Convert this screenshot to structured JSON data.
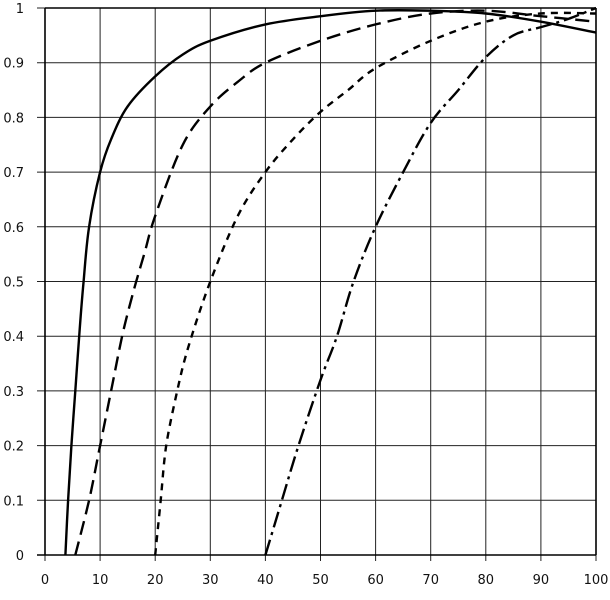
{
  "chart_data": {
    "type": "line",
    "title": "",
    "xlabel": "",
    "ylabel": "",
    "xlim": [
      0,
      100
    ],
    "ylim": [
      0,
      1
    ],
    "grid": true,
    "legend": null,
    "x_ticks": [
      "0",
      "10",
      "20",
      "30",
      "40",
      "50",
      "60",
      "70",
      "80",
      "90",
      "100"
    ],
    "y_ticks": [
      "0",
      "0.1",
      "0.2",
      "0.3",
      "0.4",
      "0.5",
      "0.6",
      "0.7",
      "0.8",
      "0.9",
      "1"
    ],
    "series": [
      {
        "name": "solid",
        "style": "solid",
        "points": [
          [
            3.7,
            0
          ],
          [
            4.2,
            0.1
          ],
          [
            4.8,
            0.2
          ],
          [
            5.5,
            0.3
          ],
          [
            6.2,
            0.4
          ],
          [
            7,
            0.5
          ],
          [
            8,
            0.6
          ],
          [
            10,
            0.7
          ],
          [
            12,
            0.76
          ],
          [
            15,
            0.82
          ],
          [
            20,
            0.875
          ],
          [
            25,
            0.915
          ],
          [
            30,
            0.94
          ],
          [
            40,
            0.97
          ],
          [
            50,
            0.985
          ],
          [
            60,
            0.995
          ],
          [
            70,
            0.995
          ],
          [
            80,
            0.99
          ],
          [
            90,
            0.975
          ],
          [
            100,
            0.955
          ]
        ]
      },
      {
        "name": "long-dash",
        "style": "long-dash",
        "points": [
          [
            5.5,
            0
          ],
          [
            8,
            0.1
          ],
          [
            10,
            0.2
          ],
          [
            12,
            0.3
          ],
          [
            14,
            0.4
          ],
          [
            16,
            0.48
          ],
          [
            18,
            0.55
          ],
          [
            20,
            0.62
          ],
          [
            25,
            0.75
          ],
          [
            30,
            0.82
          ],
          [
            35,
            0.865
          ],
          [
            40,
            0.9
          ],
          [
            50,
            0.94
          ],
          [
            60,
            0.97
          ],
          [
            70,
            0.99
          ],
          [
            80,
            0.995
          ],
          [
            90,
            0.985
          ],
          [
            100,
            0.975
          ]
        ]
      },
      {
        "name": "short-dash",
        "style": "short-dash",
        "points": [
          [
            20,
            0
          ],
          [
            21,
            0.1
          ],
          [
            22,
            0.2
          ],
          [
            24,
            0.3
          ],
          [
            26,
            0.38
          ],
          [
            30,
            0.5
          ],
          [
            35,
            0.62
          ],
          [
            40,
            0.7
          ],
          [
            45,
            0.76
          ],
          [
            50,
            0.81
          ],
          [
            55,
            0.85
          ],
          [
            60,
            0.89
          ],
          [
            70,
            0.94
          ],
          [
            80,
            0.975
          ],
          [
            90,
            0.99
          ],
          [
            100,
            0.99
          ]
        ]
      },
      {
        "name": "dash-dot",
        "style": "dash-dot",
        "points": [
          [
            40,
            0
          ],
          [
            43,
            0.1
          ],
          [
            46,
            0.2
          ],
          [
            50,
            0.32
          ],
          [
            53,
            0.4
          ],
          [
            56,
            0.5
          ],
          [
            60,
            0.6
          ],
          [
            65,
            0.7
          ],
          [
            70,
            0.79
          ],
          [
            75,
            0.85
          ],
          [
            80,
            0.91
          ],
          [
            85,
            0.95
          ],
          [
            90,
            0.965
          ],
          [
            95,
            0.98
          ],
          [
            100,
            1.0
          ]
        ]
      }
    ]
  }
}
